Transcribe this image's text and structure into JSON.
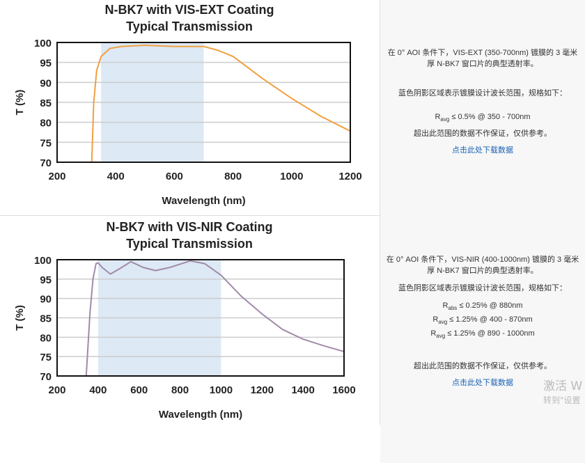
{
  "rows": [
    {
      "desc": "在 0° AOI 条件下，VIS-EXT (350-700nm) 镀膜的 3 毫米厚 N-BK7 窗口片的典型透射率。",
      "shade_note": "蓝色阴影区域表示镀膜设计波长范围，规格如下：",
      "specs": [
        {
          "sym": "R",
          "sub": "avg",
          "text": " ≤ 0.5% @ 350 - 700nm"
        }
      ],
      "disclaimer": "超出此范围的数据不作保证，仅供参考。",
      "download": "点击此处下载数据"
    },
    {
      "desc": "在 0° AOI 条件下，VIS-NIR (400-1000nm) 镀膜的 3 毫米厚 N-BK7 窗口片的典型透射率。",
      "shade_note": "蓝色阴影区域表示镀膜设计波长范围，规格如下：",
      "specs": [
        {
          "sym": "R",
          "sub": "abs",
          "text": " ≤ 0.25% @ 880nm"
        },
        {
          "sym": "R",
          "sub": "avg",
          "text": " ≤ 1.25% @ 400 - 870nm"
        },
        {
          "sym": "R",
          "sub": "avg",
          "text": " ≤ 1.25% @ 890 - 1000nm"
        }
      ],
      "disclaimer": "超出此范围的数据不作保证，仅供参考。",
      "download": "点击此处下载数据"
    }
  ],
  "watermark": {
    "line1": "激活 W",
    "line2": "转到\"设置"
  },
  "chart_data": [
    {
      "type": "line",
      "title": [
        "N-BK7 with VIS-EXT Coating",
        "Typical Transmission"
      ],
      "xlabel": "Wavelength (nm)",
      "ylabel": "T (%)",
      "xlim": [
        200,
        1200
      ],
      "ylim": [
        70,
        100
      ],
      "xticks": [
        200,
        400,
        600,
        800,
        1000,
        1200
      ],
      "yticks": [
        70,
        75,
        80,
        85,
        90,
        95,
        100
      ],
      "grid": "horizontal",
      "shaded_range": [
        350,
        700
      ],
      "shade_color": "#dde9f5",
      "line_color": "#f0a040",
      "x": [
        318,
        325,
        335,
        350,
        380,
        420,
        500,
        600,
        700,
        750,
        800,
        900,
        1000,
        1100,
        1200
      ],
      "y": [
        70,
        85,
        93,
        96.5,
        98.5,
        99,
        99.3,
        99,
        99,
        98,
        96.5,
        91,
        86,
        81.5,
        77.8
      ]
    },
    {
      "type": "line",
      "title": [
        "N-BK7 with VIS-NIR Coating",
        "Typical Transmission"
      ],
      "xlabel": "Wavelength (nm)",
      "ylabel": "T (%)",
      "xlim": [
        200,
        1600
      ],
      "ylim": [
        70,
        100
      ],
      "xticks": [
        200,
        400,
        600,
        800,
        1000,
        1200,
        1400,
        1600
      ],
      "yticks": [
        70,
        75,
        80,
        85,
        90,
        95,
        100
      ],
      "grid": "horizontal",
      "shaded_range": [
        400,
        1000
      ],
      "shade_color": "#dde9f5",
      "line_color": "#a08aa8",
      "x": [
        342,
        360,
        375,
        390,
        400,
        420,
        460,
        500,
        560,
        620,
        680,
        750,
        850,
        920,
        1000,
        1100,
        1200,
        1300,
        1400,
        1500,
        1600
      ],
      "y": [
        70,
        86,
        95,
        99,
        99.2,
        98,
        96.3,
        97.5,
        99.5,
        98,
        97.2,
        98,
        99.7,
        99,
        96,
        90.5,
        86,
        82,
        79.5,
        77.8,
        76.3
      ]
    }
  ]
}
